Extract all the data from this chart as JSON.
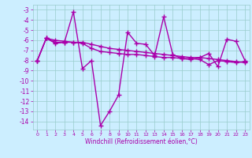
{
  "x": [
    0,
    1,
    2,
    3,
    4,
    5,
    6,
    7,
    8,
    9,
    10,
    11,
    12,
    13,
    14,
    15,
    16,
    17,
    18,
    19,
    20,
    21,
    22,
    23
  ],
  "line1": [
    -8.0,
    -5.8,
    -6.3,
    -6.2,
    -3.2,
    -8.8,
    -8.0,
    -14.4,
    -13.0,
    -11.4,
    -5.2,
    -6.3,
    -6.4,
    -7.5,
    -3.7,
    -7.4,
    -7.8,
    -7.9,
    -7.7,
    -7.3,
    -8.6,
    -5.9,
    -6.1,
    -8.0
  ],
  "line2": [
    -8.0,
    -5.8,
    -6.2,
    -6.2,
    -6.2,
    -6.2,
    -6.4,
    -6.6,
    -6.8,
    -6.9,
    -7.0,
    -7.1,
    -7.2,
    -7.3,
    -7.4,
    -7.5,
    -7.6,
    -7.7,
    -7.7,
    -7.8,
    -7.9,
    -8.0,
    -8.1,
    -8.2
  ],
  "line3": [
    -8.0,
    -5.8,
    -6.0,
    -6.1,
    -6.2,
    -6.3,
    -6.8,
    -7.1,
    -7.2,
    -7.3,
    -7.4,
    -7.4,
    -7.5,
    -7.6,
    -7.7,
    -7.7,
    -7.8,
    -7.8,
    -7.9,
    -8.4,
    -8.0,
    -8.1,
    -8.2,
    -8.1
  ],
  "line_color": "#aa00aa",
  "bg_color": "#cceeff",
  "grid_color": "#99cccc",
  "xlabel": "Windchill (Refroidissement éolien,°C)",
  "ylim": [
    -14.8,
    -2.5
  ],
  "xlim": [
    -0.5,
    23.5
  ],
  "yticks": [
    -3,
    -4,
    -5,
    -6,
    -7,
    -8,
    -9,
    -10,
    -11,
    -12,
    -13,
    -14
  ],
  "xticks": [
    0,
    1,
    2,
    3,
    4,
    5,
    6,
    7,
    8,
    9,
    10,
    11,
    12,
    13,
    14,
    15,
    16,
    17,
    18,
    19,
    20,
    21,
    22,
    23
  ],
  "marker": "+",
  "marker_size": 4,
  "line_width": 1.0
}
